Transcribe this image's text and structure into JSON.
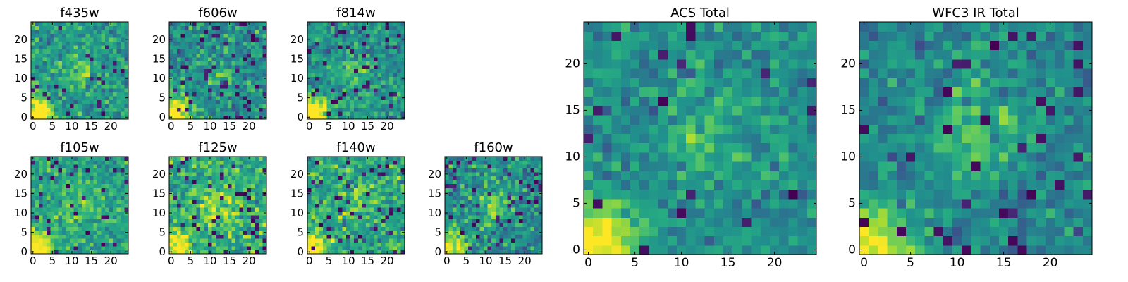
{
  "chart_data": [
    {
      "type": "heatmap",
      "title": "f435w",
      "xlim": [
        0,
        24
      ],
      "ylim": [
        0,
        24
      ],
      "xticks": [
        0,
        5,
        10,
        15,
        20
      ],
      "yticks": [
        0,
        5,
        10,
        15,
        20
      ],
      "colormap": "viridis",
      "bright_spots": [
        {
          "x": 1,
          "y": 1,
          "radius": 3,
          "amp": 0.65
        },
        {
          "x": 12,
          "y": 12,
          "radius": 3,
          "amp": 0.2
        }
      ],
      "base_level": 0.55,
      "noise": 0.16,
      "dark_fraction": 0.04,
      "seed": 11
    },
    {
      "type": "heatmap",
      "title": "f606w",
      "xlim": [
        0,
        24
      ],
      "ylim": [
        0,
        24
      ],
      "xticks": [
        0,
        5,
        10,
        15,
        20
      ],
      "yticks": [
        0,
        5,
        10,
        15,
        20
      ],
      "colormap": "viridis",
      "bright_spots": [
        {
          "x": 1,
          "y": 1,
          "radius": 3,
          "amp": 0.65
        },
        {
          "x": 12,
          "y": 12,
          "radius": 3,
          "amp": 0.18
        }
      ],
      "base_level": 0.5,
      "noise": 0.17,
      "dark_fraction": 0.07,
      "seed": 23
    },
    {
      "type": "heatmap",
      "title": "f814w",
      "xlim": [
        0,
        24
      ],
      "ylim": [
        0,
        24
      ],
      "xticks": [
        0,
        5,
        10,
        15,
        20
      ],
      "yticks": [
        0,
        5,
        10,
        15,
        20
      ],
      "colormap": "viridis",
      "bright_spots": [
        {
          "x": 1,
          "y": 1,
          "radius": 3,
          "amp": 0.65
        },
        {
          "x": 12,
          "y": 12,
          "radius": 3,
          "amp": 0.2
        }
      ],
      "base_level": 0.52,
      "noise": 0.16,
      "dark_fraction": 0.06,
      "seed": 37
    },
    {
      "type": "heatmap",
      "title": "f105w",
      "xlim": [
        0,
        24
      ],
      "ylim": [
        0,
        24
      ],
      "xticks": [
        0,
        5,
        10,
        15,
        20
      ],
      "yticks": [
        0,
        5,
        10,
        15,
        20
      ],
      "colormap": "viridis",
      "bright_spots": [
        {
          "x": 1,
          "y": 1,
          "radius": 3,
          "amp": 0.5
        },
        {
          "x": 12,
          "y": 12,
          "radius": 4,
          "amp": 0.15
        }
      ],
      "base_level": 0.58,
      "noise": 0.15,
      "dark_fraction": 0.05,
      "seed": 41
    },
    {
      "type": "heatmap",
      "title": "f125w",
      "xlim": [
        0,
        24
      ],
      "ylim": [
        0,
        24
      ],
      "xticks": [
        0,
        5,
        10,
        15,
        20
      ],
      "yticks": [
        0,
        5,
        10,
        15,
        20
      ],
      "colormap": "viridis",
      "bright_spots": [
        {
          "x": 1,
          "y": 1,
          "radius": 3,
          "amp": 0.5
        },
        {
          "x": 13,
          "y": 12,
          "radius": 4,
          "amp": 0.2
        }
      ],
      "base_level": 0.62,
      "noise": 0.18,
      "dark_fraction": 0.06,
      "seed": 53
    },
    {
      "type": "heatmap",
      "title": "f140w",
      "xlim": [
        0,
        24
      ],
      "ylim": [
        0,
        24
      ],
      "xticks": [
        0,
        5,
        10,
        15,
        20
      ],
      "yticks": [
        0,
        5,
        10,
        15,
        20
      ],
      "colormap": "viridis",
      "bright_spots": [
        {
          "x": 1,
          "y": 1,
          "radius": 3,
          "amp": 0.5
        },
        {
          "x": 13,
          "y": 13,
          "radius": 4,
          "amp": 0.18
        }
      ],
      "base_level": 0.58,
      "noise": 0.18,
      "dark_fraction": 0.07,
      "seed": 67
    },
    {
      "type": "heatmap",
      "title": "f160w",
      "xlim": [
        0,
        24
      ],
      "ylim": [
        0,
        24
      ],
      "xticks": [
        0,
        5,
        10,
        15,
        20
      ],
      "yticks": [
        0,
        5,
        10,
        15,
        20
      ],
      "colormap": "viridis",
      "bright_spots": [
        {
          "x": 1,
          "y": 1,
          "radius": 3,
          "amp": 0.5
        },
        {
          "x": 12,
          "y": 12,
          "radius": 3,
          "amp": 0.28
        }
      ],
      "base_level": 0.5,
      "noise": 0.18,
      "dark_fraction": 0.08,
      "seed": 79
    },
    {
      "type": "heatmap",
      "title": "ACS Total",
      "xlim": [
        0,
        24
      ],
      "ylim": [
        0,
        24
      ],
      "xticks": [
        0,
        5,
        10,
        15,
        20
      ],
      "yticks": [
        0,
        5,
        10,
        15,
        20
      ],
      "colormap": "viridis",
      "bright_spots": [
        {
          "x": 1,
          "y": 1,
          "radius": 3,
          "amp": 0.55
        },
        {
          "x": 13,
          "y": 12,
          "radius": 3,
          "amp": 0.22
        }
      ],
      "base_level": 0.5,
      "noise": 0.13,
      "dark_fraction": 0.035,
      "seed": 97
    },
    {
      "type": "heatmap",
      "title": "WFC3 IR Total",
      "xlim": [
        0,
        24
      ],
      "ylim": [
        0,
        24
      ],
      "xticks": [
        0,
        5,
        10,
        15,
        20
      ],
      "yticks": [
        0,
        5,
        10,
        15,
        20
      ],
      "colormap": "viridis",
      "bright_spots": [
        {
          "x": 1,
          "y": 1,
          "radius": 3,
          "amp": 0.55
        },
        {
          "x": 12,
          "y": 13,
          "radius": 4,
          "amp": 0.22
        }
      ],
      "base_level": 0.45,
      "noise": 0.14,
      "dark_fraction": 0.05,
      "seed": 113
    }
  ]
}
